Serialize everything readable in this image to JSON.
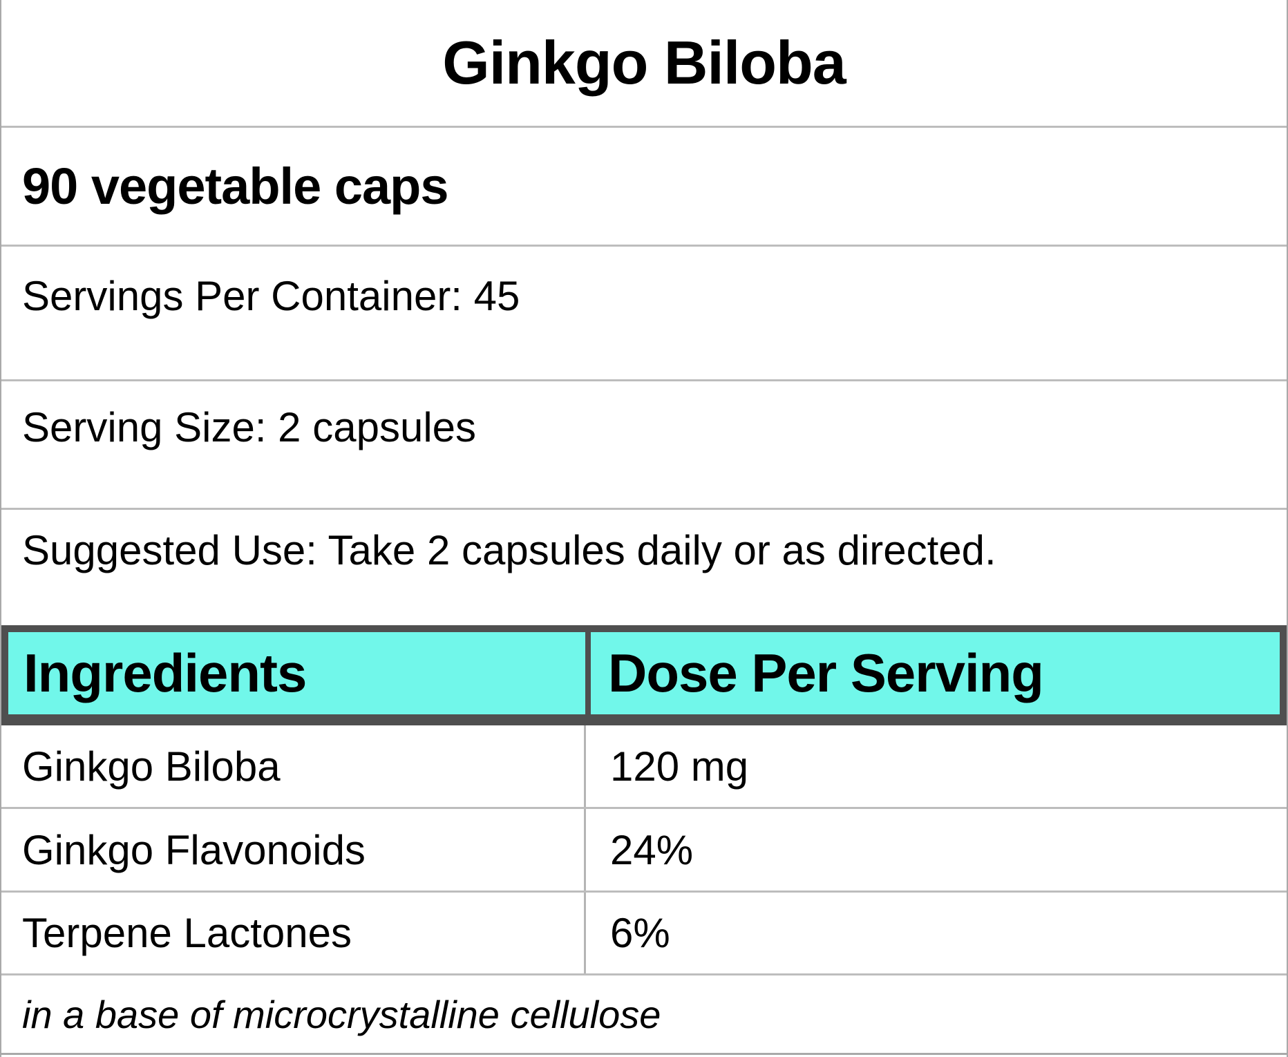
{
  "label": {
    "title": "Ginkgo Biloba",
    "quantity": "90 vegetable caps",
    "servings_per_container": "Servings Per Container: 45",
    "serving_size": "Serving Size: 2 capsules",
    "suggested_use": "Suggested Use: Take 2 capsules daily or as directed.",
    "footer_note": "in a base of microcrystalline cellulose"
  },
  "ingredients_table": {
    "headers": [
      "Ingredients",
      "Dose Per Serving"
    ],
    "rows": [
      {
        "name": "Ginkgo Biloba",
        "dose": "120 mg"
      },
      {
        "name": "Ginkgo Flavonoids",
        "dose": "24%"
      },
      {
        "name": "Terpene Lactones",
        "dose": "6%"
      }
    ]
  },
  "colors": {
    "header_background": "#71f7ea",
    "header_frame": "#4f4f4f",
    "grid_lines": "#bdbdbd",
    "outer_border": "#a9a9a9",
    "text": "#000000"
  }
}
